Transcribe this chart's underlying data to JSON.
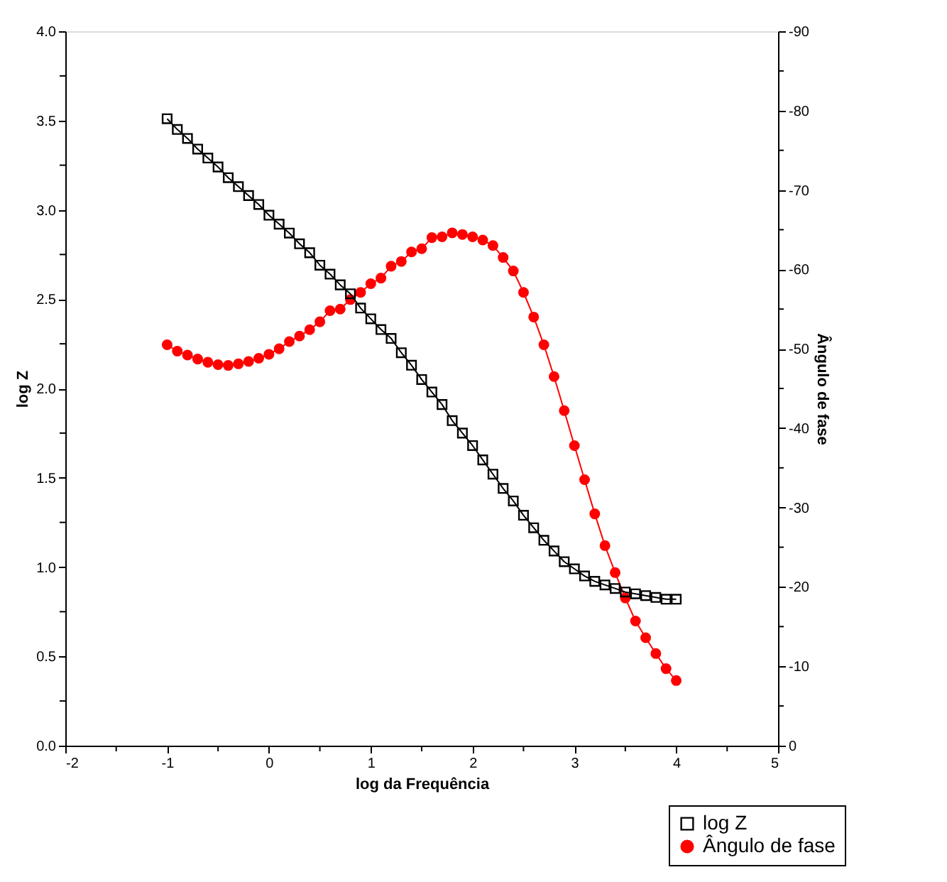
{
  "chart_data": {
    "type": "line",
    "xlabel": "log da Frequência",
    "ylabel": "log Z",
    "y2label": "Ângulo de fase",
    "x": [
      -1.0,
      -0.9,
      -0.8,
      -0.7,
      -0.6,
      -0.5,
      -0.4,
      -0.3,
      -0.2,
      -0.1,
      0.0,
      0.1,
      0.2,
      0.3,
      0.4,
      0.5,
      0.6,
      0.7,
      0.8,
      0.9,
      1.0,
      1.1,
      1.2,
      1.3,
      1.4,
      1.5,
      1.6,
      1.7,
      1.8,
      1.9,
      2.0,
      2.1,
      2.2,
      2.3,
      2.4,
      2.5,
      2.6,
      2.7,
      2.8,
      2.9,
      3.0,
      3.1,
      3.2,
      3.3,
      3.4,
      3.5,
      3.6,
      3.7,
      3.8,
      3.9,
      4.0
    ],
    "series": [
      {
        "name": "log Z",
        "color": "#000000",
        "marker": "square",
        "values": [
          3.51,
          3.45,
          3.4,
          3.34,
          3.29,
          3.24,
          3.18,
          3.13,
          3.08,
          3.03,
          2.97,
          2.92,
          2.87,
          2.81,
          2.76,
          2.69,
          2.64,
          2.58,
          2.53,
          2.45,
          2.39,
          2.33,
          2.28,
          2.2,
          2.13,
          2.05,
          1.98,
          1.91,
          1.82,
          1.75,
          1.68,
          1.6,
          1.52,
          1.44,
          1.37,
          1.29,
          1.22,
          1.15,
          1.09,
          1.03,
          0.99,
          0.95,
          0.92,
          0.9,
          0.88,
          0.86,
          0.85,
          0.84,
          0.83,
          0.82,
          0.82
        ]
      },
      {
        "name": "Ângulo de fase",
        "color": "#ff0000",
        "marker": "circle",
        "axis": "y2",
        "values": [
          -50.5,
          -49.7,
          -49.2,
          -48.7,
          -48.3,
          -48.0,
          -47.9,
          -48.1,
          -48.4,
          -48.8,
          -49.3,
          -50.0,
          -50.9,
          -51.6,
          -52.4,
          -53.4,
          -54.8,
          -55.0,
          -56.2,
          -57.1,
          -58.2,
          -58.9,
          -60.4,
          -61.0,
          -62.2,
          -62.6,
          -64.0,
          -64.1,
          -64.6,
          -64.4,
          -64.1,
          -63.7,
          -63.0,
          -61.5,
          -59.8,
          -57.1,
          -54.0,
          -50.5,
          -46.5,
          -42.2,
          -37.8,
          -33.5,
          -29.2,
          -25.2,
          -21.8,
          -18.6,
          -15.7,
          -13.6,
          -11.6,
          -9.7,
          -8.2
        ]
      }
    ],
    "xlim": [
      -2,
      5
    ],
    "xticks": [
      -2,
      {
        "value": -1.5,
        "label": null
      },
      -1,
      {
        "value": -0.5,
        "label": null
      },
      0,
      {
        "value": 0.5,
        "label": null
      },
      1,
      {
        "value": 1.5,
        "label": null
      },
      2,
      {
        "value": 2.5,
        "label": null
      },
      3,
      {
        "value": 3.5,
        "label": null
      },
      4,
      {
        "value": 4.5,
        "label": null
      },
      5
    ],
    "ylim": [
      0,
      4
    ],
    "yticks": [
      {
        "value": 0,
        "label": "0.0"
      },
      {
        "value": 0.25,
        "label": null
      },
      {
        "value": 0.5,
        "label": "0.5"
      },
      {
        "value": 0.75,
        "label": null
      },
      {
        "value": 1,
        "label": "1.0"
      },
      {
        "value": 1.25,
        "label": null
      },
      {
        "value": 1.5,
        "label": "1.5"
      },
      {
        "value": 1.75,
        "label": null
      },
      {
        "value": 2,
        "label": "2.0"
      },
      {
        "value": 2.25,
        "label": null
      },
      {
        "value": 2.5,
        "label": "2.5"
      },
      {
        "value": 2.75,
        "label": null
      },
      {
        "value": 3,
        "label": "3.0"
      },
      {
        "value": 3.25,
        "label": null
      },
      {
        "value": 3.5,
        "label": "3.5"
      },
      {
        "value": 3.75,
        "label": null
      },
      {
        "value": 4,
        "label": "4.0"
      }
    ],
    "y2lim": [
      0,
      -90
    ],
    "y2ticks": [
      0,
      {
        "value": -5,
        "label": null
      },
      -10,
      {
        "value": -15,
        "label": null
      },
      -20,
      {
        "value": -25,
        "label": null
      },
      -30,
      {
        "value": -35,
        "label": null
      },
      -40,
      {
        "value": -45,
        "label": null
      },
      -50,
      {
        "value": -55,
        "label": null
      },
      -60,
      {
        "value": -65,
        "label": null
      },
      -70,
      {
        "value": -75,
        "label": null
      },
      -80,
      {
        "value": -85,
        "label": null
      },
      -90
    ],
    "grid": false,
    "legend": "bottom right",
    "line_style": "solid"
  }
}
